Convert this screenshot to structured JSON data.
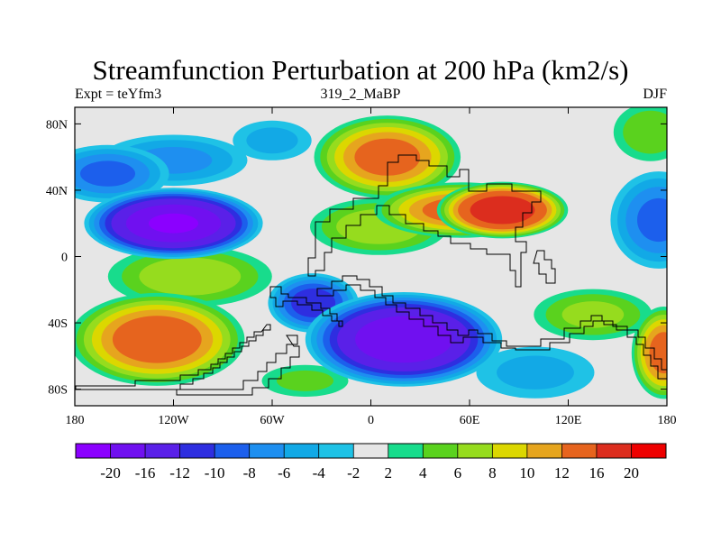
{
  "chart_data": {
    "type": "heatmap",
    "title": "Streamfunction Perturbation at 200 hPa (km2/s)",
    "subtitle_left": "Expt = teYfm3",
    "subtitle_center": "319_2_MaBP",
    "subtitle_right": "DJF",
    "xlabel": "",
    "ylabel": "",
    "xlim": [
      -180,
      180
    ],
    "ylim": [
      -90,
      90
    ],
    "x_ticks": [
      {
        "value": -180,
        "label": "180"
      },
      {
        "value": -120,
        "label": "120W"
      },
      {
        "value": -60,
        "label": "60W"
      },
      {
        "value": 0,
        "label": "0"
      },
      {
        "value": 60,
        "label": "60E"
      },
      {
        "value": 120,
        "label": "120E"
      },
      {
        "value": 180,
        "label": "180"
      }
    ],
    "y_ticks": [
      {
        "value": 80,
        "label": "80N"
      },
      {
        "value": 40,
        "label": "40N"
      },
      {
        "value": 0,
        "label": "0"
      },
      {
        "value": -40,
        "label": "40S"
      },
      {
        "value": -80,
        "label": "80S"
      }
    ],
    "colorbar": {
      "levels": [
        -20,
        -16,
        -12,
        -10,
        -8,
        -6,
        -4,
        -2,
        2,
        4,
        6,
        8,
        10,
        12,
        16,
        20
      ],
      "labels": [
        "-20",
        "-16",
        "-12",
        "-10",
        "-8",
        "-6",
        "-4",
        "-2",
        "2",
        "4",
        "6",
        "8",
        "10",
        "12",
        "16",
        "20"
      ],
      "colors": [
        "#8b00ff",
        "#7010f0",
        "#5a20e8",
        "#2e2ee0",
        "#1c5fec",
        "#1e8ff0",
        "#12a9e6",
        "#1fc2e6",
        "#e6e6e6",
        "#18dc8c",
        "#5ad21e",
        "#96dc1e",
        "#dcd700",
        "#e6a51e",
        "#e6641e",
        "#dc2d1e",
        "#ee0000"
      ]
    },
    "features": [
      {
        "lon": -120,
        "lat": 20,
        "value": -21,
        "sx": 38,
        "sy": 15
      },
      {
        "lon": -160,
        "lat": 50,
        "value": -9,
        "sx": 28,
        "sy": 13
      },
      {
        "lon": -120,
        "lat": 58,
        "value": -7,
        "sx": 35,
        "sy": 12
      },
      {
        "lon": -60,
        "lat": 70,
        "value": -5,
        "sx": 20,
        "sy": 10
      },
      {
        "lon": 10,
        "lat": 60,
        "value": 14,
        "sx": 32,
        "sy": 18
      },
      {
        "lon": 55,
        "lat": 28,
        "value": 14,
        "sx": 38,
        "sy": 12
      },
      {
        "lon": 80,
        "lat": 28,
        "value": 20,
        "sx": 28,
        "sy": 12
      },
      {
        "lon": 5,
        "lat": 18,
        "value": 8,
        "sx": 32,
        "sy": 13
      },
      {
        "lon": 175,
        "lat": 22,
        "value": -9,
        "sx": 22,
        "sy": 22
      },
      {
        "lon": 170,
        "lat": 75,
        "value": 6,
        "sx": 18,
        "sy": 14
      },
      {
        "lon": -130,
        "lat": -50,
        "value": 15,
        "sx": 38,
        "sy": 20
      },
      {
        "lon": -110,
        "lat": -12,
        "value": 8,
        "sx": 38,
        "sy": 14
      },
      {
        "lon": 20,
        "lat": -50,
        "value": -20,
        "sx": 42,
        "sy": 20
      },
      {
        "lon": -35,
        "lat": -28,
        "value": -12,
        "sx": 20,
        "sy": 13
      },
      {
        "lon": 100,
        "lat": -70,
        "value": -5,
        "sx": 30,
        "sy": 13
      },
      {
        "lon": 135,
        "lat": -35,
        "value": 7,
        "sx": 28,
        "sy": 12
      },
      {
        "lon": 178,
        "lat": -58,
        "value": 14,
        "sx": 14,
        "sy": 20
      },
      {
        "lon": -40,
        "lat": -75,
        "value": 5,
        "sx": 22,
        "sy": 8
      }
    ]
  }
}
